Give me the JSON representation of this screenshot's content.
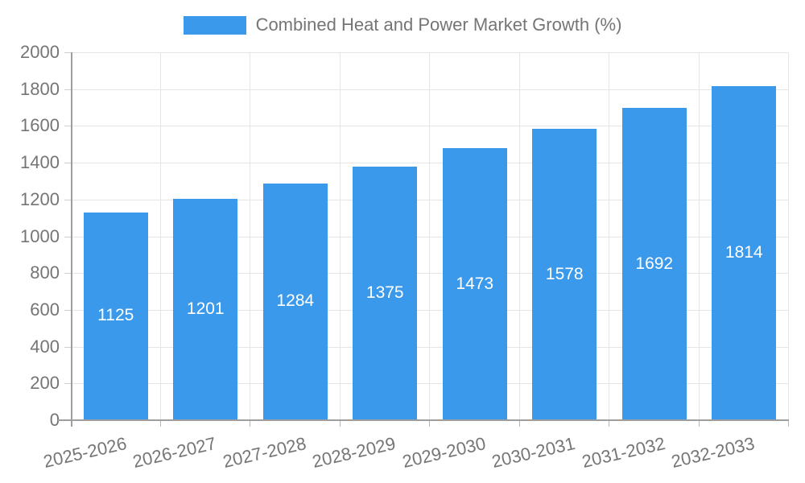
{
  "legend": {
    "label": "Combined Heat and Power Market Growth (%)"
  },
  "chart_data": {
    "type": "bar",
    "title": "Combined Heat and Power Market Growth (%)",
    "categories": [
      "2025-2026",
      "2026-2027",
      "2027-2028",
      "2028-2029",
      "2029-2030",
      "2030-2031",
      "2031-2032",
      "2032-2033"
    ],
    "values": [
      1125,
      1201,
      1284,
      1375,
      1473,
      1578,
      1692,
      1814
    ],
    "value_label_position": "inside-center",
    "value_label_color": "#ffffff",
    "xlabel": "",
    "ylabel": "",
    "ylim": [
      0,
      2000
    ],
    "ytick_step": 200,
    "ytick_labels": [
      "0",
      "200",
      "400",
      "600",
      "800",
      "1000",
      "1200",
      "1400",
      "1600",
      "1800",
      "2000"
    ],
    "grid": true,
    "legend_position": "top-center",
    "bar_color": "#3b99ec",
    "gridline_color": "#e5e5e5",
    "axis_color": "#9e9e9e",
    "text_color": "#757575"
  }
}
